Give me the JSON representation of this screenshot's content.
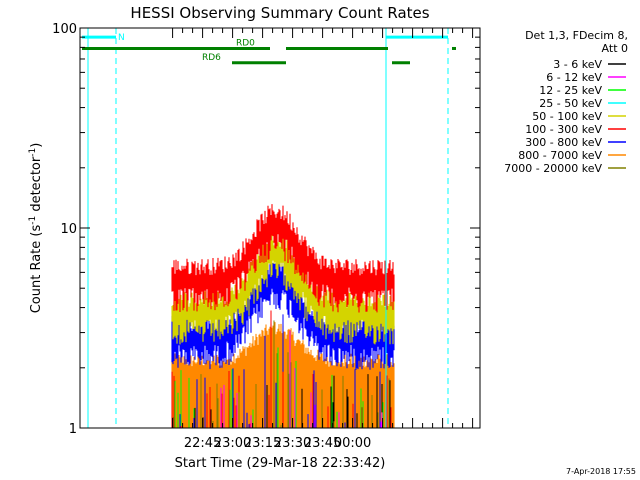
{
  "chart_data": {
    "type": "line",
    "title": "HESSI Observing Summary Count Rates",
    "xlabel": "Start Time (29-Mar-18 22:33:42)",
    "ylabel": "Count Rate (s",
    "ylabel_sup1": "-1",
    "ylabel_mid": " detector",
    "ylabel_sup2": "-1",
    "ylabel_end": ")",
    "y_scale": "log",
    "ylim": [
      1,
      100
    ],
    "y_ticks": [
      {
        "v": 1,
        "label": "1"
      },
      {
        "v": 10,
        "label": "10"
      },
      {
        "v": 100,
        "label": "100"
      }
    ],
    "xlim": [
      -50,
      150
    ],
    "x_ticks": [
      {
        "v": 11.3,
        "label": "22:45"
      },
      {
        "v": 26.3,
        "label": "23:00"
      },
      {
        "v": 41.3,
        "label": "23:15"
      },
      {
        "v": 56.3,
        "label": "23:30"
      },
      {
        "v": 71.3,
        "label": "23:45"
      },
      {
        "v": 86.3,
        "label": "00:00"
      }
    ],
    "date_stamp": "7-Apr-2018 17:55",
    "legend": {
      "position": "right",
      "header": [
        "Det 1,3, FDecim 8,",
        "Att 0"
      ],
      "items": [
        {
          "label": "3 - 6 keV",
          "color": "#000000"
        },
        {
          "label": "6 - 12 keV",
          "color": "#ff00ff"
        },
        {
          "label": "12 - 25 keV",
          "color": "#00ff00"
        },
        {
          "label": "25 - 50 keV",
          "color": "#00ffff"
        },
        {
          "label": "50 - 100 keV",
          "color": "#d4d400"
        },
        {
          "label": "100 - 300 keV",
          "color": "#ff0000"
        },
        {
          "label": "300 - 800 keV",
          "color": "#0000ff"
        },
        {
          "label": "800 - 7000 keV",
          "color": "#ff8800"
        },
        {
          "label": "7000 - 20000 keV",
          "color": "#808000"
        }
      ]
    },
    "night_bars": {
      "label": "N",
      "color": "#00ffff",
      "y": 90,
      "segments": [
        [
          -49,
          -32
        ],
        [
          103,
          134
        ]
      ]
    },
    "rd_bars": {
      "color": "#008000",
      "segments": [
        {
          "label": "RD0",
          "y": 79,
          "x": [
            -49,
            45
          ]
        },
        {
          "label": "",
          "y": 79,
          "x": [
            53,
            104
          ]
        },
        {
          "label": "",
          "y": 79,
          "x": [
            136,
            138
          ]
        },
        {
          "label": "RD6",
          "y": 67,
          "x": [
            26,
            53
          ]
        },
        {
          "label": "",
          "y": 67,
          "x": [
            106,
            115
          ]
        }
      ]
    },
    "vlines": [
      {
        "x": -46,
        "style": "solid"
      },
      {
        "x": -32,
        "style": "dashed"
      },
      {
        "x": 103,
        "style": "solid"
      },
      {
        "x": 134,
        "style": "dashed"
      }
    ],
    "data_window": [
      -4,
      107
    ],
    "series": [
      {
        "name": "800 - 7000 keV",
        "color": "#ff8800",
        "baseline": 2.0,
        "peak": 2.9,
        "noise": 0.18
      },
      {
        "name": "300 - 800 keV",
        "color": "#0000ff",
        "baseline": 3.0,
        "peak": 6.0,
        "noise": 0.22
      },
      {
        "name": "50 - 100 keV",
        "color": "#d4d400",
        "baseline": 4.0,
        "peak": 8.0,
        "noise": 0.22
      },
      {
        "name": "100 - 300 keV",
        "color": "#ff0000",
        "baseline": 5.8,
        "peak": 11.0,
        "noise": 0.22
      }
    ]
  }
}
